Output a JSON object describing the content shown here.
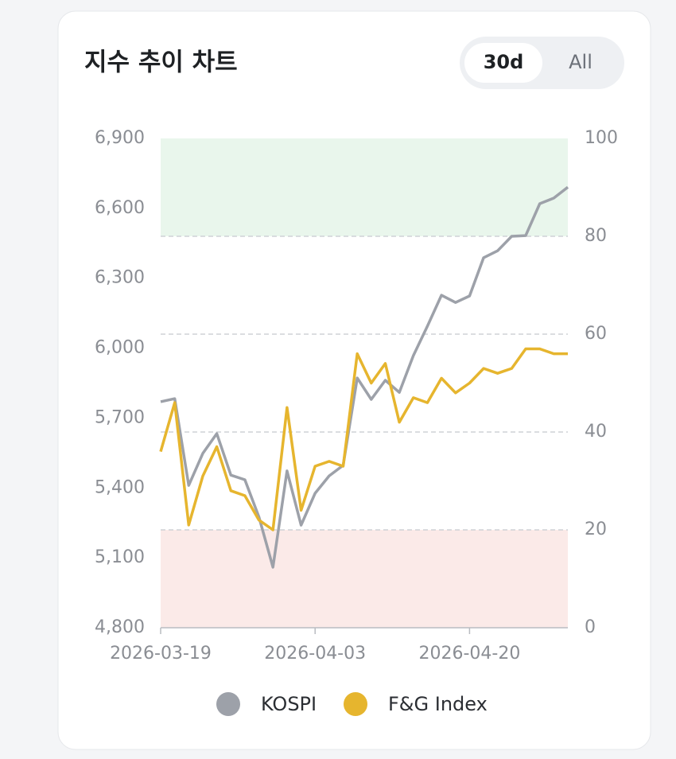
{
  "chart_data": {
    "type": "line",
    "title": "지수 추이 차트",
    "controls": [
      "30d",
      "All"
    ],
    "active_control": 0,
    "categories": [
      "2026-03-19",
      null,
      null,
      null,
      null,
      null,
      null,
      null,
      null,
      null,
      null,
      "2026-04-03",
      null,
      null,
      null,
      null,
      null,
      null,
      null,
      null,
      null,
      null,
      "2026-04-20",
      null,
      null,
      null,
      null,
      null,
      null,
      null
    ],
    "series": [
      {
        "name": "KOSPI",
        "color": "#9da1a9",
        "values": [
          5770,
          5783,
          5411,
          5548,
          5633,
          5455,
          5435,
          5275,
          5060,
          5473,
          5240,
          5377,
          5452,
          5497,
          5872,
          5780,
          5862,
          5810,
          5968,
          6094,
          6227,
          6196,
          6224,
          6388,
          6418,
          6480,
          6483,
          6620,
          6644,
          6691
        ]
      },
      {
        "name": "F&G Index",
        "color": "#e6b52e",
        "axis": "y2",
        "values": [
          36,
          46,
          21,
          31,
          37,
          28,
          27,
          22,
          20,
          45,
          24,
          33,
          34,
          33,
          56,
          50,
          54,
          42,
          47,
          46,
          51,
          48,
          50,
          53,
          52,
          53,
          57,
          57,
          56,
          56
        ]
      }
    ],
    "ylim": [
      4800,
      6900
    ],
    "yticks": [
      {
        "value": 4800,
        "label": "4,800"
      },
      {
        "value": 5100,
        "label": "5,100"
      },
      {
        "value": 5400,
        "label": "5,400"
      },
      {
        "value": 5700,
        "label": "5,700"
      },
      {
        "value": 6000,
        "label": "6,000"
      },
      {
        "value": 6300,
        "label": "6,300"
      },
      {
        "value": 6600,
        "label": "6,600"
      },
      {
        "value": 6900,
        "label": "6,900"
      }
    ],
    "y2lim": [
      0,
      100
    ],
    "y2ticks": [
      0,
      20,
      40,
      60,
      80,
      100
    ],
    "zones": [
      {
        "from": 80,
        "to": 100,
        "color": "#e9f6ec"
      },
      {
        "from": 0,
        "to": 20,
        "color": "#fbeae8"
      }
    ],
    "grid": true
  }
}
